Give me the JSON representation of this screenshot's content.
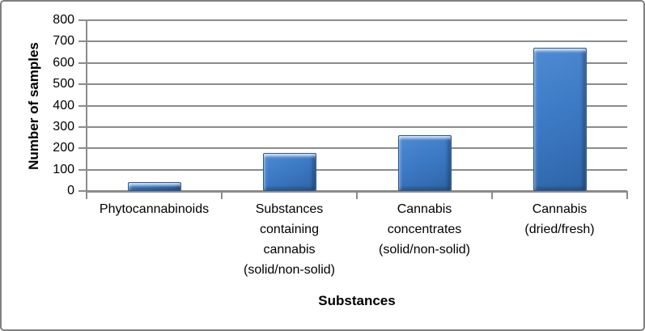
{
  "chart_data": {
    "type": "bar",
    "title": "",
    "xlabel": "Substances",
    "ylabel": "Number of samples",
    "categories": [
      "Phytocannabinoids",
      "Substances containing cannabis (solid/non-solid)",
      "Cannabis concentrates (solid/non-solid)",
      "Cannabis (dried/fresh)"
    ],
    "category_label_lines": [
      [
        "Phytocannabinoids"
      ],
      [
        "Substances",
        "containing",
        "cannabis",
        "(solid/non-solid)"
      ],
      [
        "Cannabis",
        "concentrates",
        "(solid/non-solid)"
      ],
      [
        "Cannabis",
        "(dried/fresh)"
      ]
    ],
    "values": [
      40,
      180,
      260,
      670
    ],
    "ylim": [
      0,
      800
    ],
    "ytick_step": 100,
    "ytick_labels": [
      "0",
      "100",
      "200",
      "300",
      "400",
      "500",
      "600",
      "700",
      "800"
    ],
    "grid": true,
    "legend_position": "none",
    "colors": {
      "bar_fill": "#3d7ac6",
      "bar_border": "#27589a",
      "gridline": "#8b8b8b",
      "axis": "#8b8b8b",
      "text": "#000000",
      "frame_border": "#7f7f7f",
      "background": "#ffffff"
    }
  }
}
